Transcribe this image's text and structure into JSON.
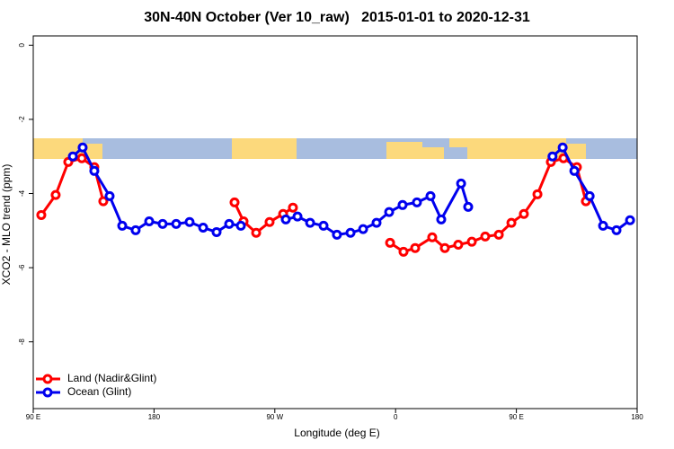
{
  "chart_data": {
    "type": "line",
    "title": "30N-40N October (Ver 10_raw)   2015-01-01 to 2020-12-31",
    "xlabel": "Longitude (deg E)",
    "ylabel": "XCO2 - MLO trend (ppm)",
    "xlim": [
      90,
      540
    ],
    "ylim": [
      -9.8,
      0.25
    ],
    "xticks": [
      {
        "value": 90,
        "label": "90 E"
      },
      180,
      {
        "value": 270,
        "label": "90 W"
      },
      {
        "value": 360,
        "label": "0"
      },
      {
        "value": 450,
        "label": "90 E"
      },
      {
        "value": 540,
        "label": "180"
      }
    ],
    "yticks": [
      0,
      -2,
      -4,
      -6,
      -8
    ],
    "legend": "bottom-left",
    "series": [
      {
        "name": "Land (Nadir&Glint)",
        "color": "#ff0000",
        "x": [
          96.0,
          106.7,
          116.1,
          126.2,
          135.5,
          142.2,
          null,
          240.0,
          246.7,
          256.1,
          266.1,
          276.2,
          283.5,
          null,
          355.9,
          365.9,
          374.6,
          387.3,
          396.7,
          406.7,
          416.8,
          426.8,
          436.9,
          446.3,
          455.6,
          465.7,
          475.7,
          485.1,
          495.1,
          501.8
        ],
        "values": [
          -4.58,
          -4.04,
          -3.15,
          -3.05,
          -3.29,
          -4.21,
          null,
          -4.24,
          -4.75,
          -5.06,
          -4.77,
          -4.55,
          -4.38,
          null,
          -5.33,
          -5.57,
          -5.47,
          -5.18,
          -5.47,
          -5.38,
          -5.3,
          -5.16,
          -5.11,
          -4.79,
          -4.55,
          -4.02,
          -3.15,
          -3.05,
          -3.29,
          -4.21
        ]
      },
      {
        "name": "Ocean (Glint)",
        "color": "#0000ee",
        "x": [
          119.5,
          126.8,
          135.5,
          146.9,
          156.3,
          166.3,
          176.4,
          186.4,
          196.5,
          206.5,
          216.6,
          226.6,
          236.0,
          244.7,
          null,
          278.2,
          286.9,
          296.3,
          306.3,
          316.3,
          326.4,
          335.8,
          345.8,
          355.2,
          365.2,
          375.9,
          386.0,
          394.0,
          408.8,
          414.1,
          null,
          476.9,
          484.5,
          493.2,
          504.6,
          514.6,
          524.6,
          534.7
        ],
        "values": [
          -3.0,
          -2.76,
          -3.39,
          -4.07,
          -4.87,
          -4.99,
          -4.75,
          -4.82,
          -4.82,
          -4.77,
          -4.92,
          -5.04,
          -4.82,
          -4.87,
          null,
          -4.7,
          -4.62,
          -4.79,
          -4.87,
          -5.11,
          -5.06,
          -4.96,
          -4.79,
          -4.5,
          -4.31,
          -4.24,
          -4.07,
          -4.7,
          -3.73,
          -4.36,
          null,
          -3.0,
          -2.76,
          -3.39,
          -4.07,
          -4.87,
          -4.99,
          -4.72
        ]
      }
    ]
  }
}
